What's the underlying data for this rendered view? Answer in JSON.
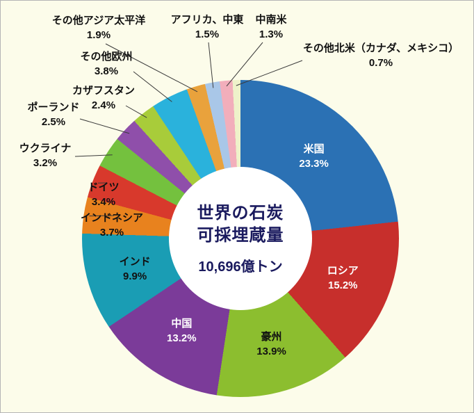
{
  "chart_data": {
    "type": "pie",
    "donut": true,
    "title": "世界の石炭可採埋蔵量",
    "center": {
      "line1": "世界の石炭",
      "line2": "可採埋蔵量",
      "total": "10,696億トン"
    },
    "unit": "%",
    "background": "#FCFCEA",
    "legend_position": "none",
    "start_angle_deg": 0,
    "direction": "clockwise",
    "slices": [
      {
        "name": "米国",
        "value": 23.3,
        "label": "23.3%",
        "color": "#2B71B4",
        "label_color": "#ffffff",
        "label_pos": "inner"
      },
      {
        "name": "ロシア",
        "value": 15.2,
        "label": "15.2%",
        "color": "#C72F2C",
        "label_color": "#ffffff",
        "label_pos": "inner"
      },
      {
        "name": "豪州",
        "value": 13.9,
        "label": "13.9%",
        "color": "#8CBE2F",
        "label_color": "#111111",
        "label_pos": "inner"
      },
      {
        "name": "中国",
        "value": 13.2,
        "label": "13.2%",
        "color": "#7B3B99",
        "label_color": "#ffffff",
        "label_pos": "inner"
      },
      {
        "name": "インド",
        "value": 9.9,
        "label": "9.9%",
        "color": "#1A9DB4",
        "label_color": "#111111",
        "label_pos": "inner"
      },
      {
        "name": "インドネシア",
        "value": 3.7,
        "label": "3.7%",
        "color": "#E8821E",
        "label_color": "#111111",
        "label_pos": "outer"
      },
      {
        "name": "ドイツ",
        "value": 3.4,
        "label": "3.4%",
        "color": "#D8392C",
        "label_color": "#111111",
        "label_pos": "outer"
      },
      {
        "name": "ウクライナ",
        "value": 3.2,
        "label": "3.2%",
        "color": "#74C13E",
        "label_color": "#111111",
        "label_pos": "outer"
      },
      {
        "name": "ポーランド",
        "value": 2.5,
        "label": "2.5%",
        "color": "#8F4FAA",
        "label_color": "#111111",
        "label_pos": "outer"
      },
      {
        "name": "カザフスタン",
        "value": 2.4,
        "label": "2.4%",
        "color": "#A8CC3A",
        "label_color": "#111111",
        "label_pos": "outer"
      },
      {
        "name": "その他欧州",
        "value": 3.8,
        "label": "3.8%",
        "color": "#2AB2DC",
        "label_color": "#111111",
        "label_pos": "outer"
      },
      {
        "name": "その他アジア太平洋",
        "value": 1.9,
        "label": "1.9%",
        "color": "#E9A23C",
        "label_color": "#111111",
        "label_pos": "outer"
      },
      {
        "name": "アフリカ、中東",
        "value": 1.5,
        "label": "1.5%",
        "color": "#A9C7E8",
        "label_color": "#111111",
        "label_pos": "outer"
      },
      {
        "name": "中南米",
        "value": 1.3,
        "label": "1.3%",
        "color": "#F2AEBB",
        "label_color": "#111111",
        "label_pos": "outer"
      },
      {
        "name": "その他北米（カナダ、メキシコ）",
        "value": 0.7,
        "label": "0.7%",
        "color": "#EEF2CA",
        "label_color": "#111111",
        "label_pos": "outer"
      }
    ]
  }
}
